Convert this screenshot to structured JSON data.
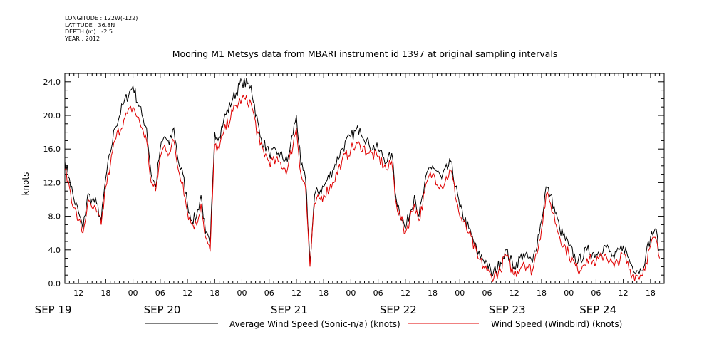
{
  "meta": {
    "longitude": "LONGITUDE : 122W(-122)",
    "latitude": "LATITUDE : 36.8N",
    "depth": "DEPTH (m) : -2.5",
    "year": "YEAR : 2012"
  },
  "chart_data": {
    "type": "line",
    "title": "Mooring M1 Metsys data from MBARI instrument id 1397 at original sampling intervals",
    "ylabel": "knots",
    "xlabel": "",
    "ylim": [
      0,
      25
    ],
    "xlim": [
      "2012-09-19 09:00",
      "2012-09-24 21:00"
    ],
    "yticks": [
      "0.0",
      "4.0",
      "8.0",
      "12.0",
      "16.0",
      "20.0",
      "24.0"
    ],
    "xtick_hours": [
      "12",
      "18",
      "00",
      "06",
      "12",
      "18",
      "00",
      "06",
      "12",
      "18",
      "00",
      "06",
      "12",
      "18",
      "00",
      "06",
      "12",
      "18",
      "00",
      "06",
      "12",
      "18",
      "00",
      "06",
      "12",
      "18"
    ],
    "date_labels": [
      "SEP 19",
      "SEP 20",
      "SEP 21",
      "SEP 22",
      "SEP 23",
      "SEP 24"
    ],
    "grid": false,
    "legend": "bottom",
    "series": [
      {
        "name": "Average Wind Speed (Sonic-n/a) (knots)",
        "color": "#000000",
        "x": [
          "2012-09-19 09:00",
          "2012-09-19 10:00",
          "2012-09-19 11:00",
          "2012-09-19 12:00",
          "2012-09-19 13:00",
          "2012-09-19 14:00",
          "2012-09-19 15:00",
          "2012-09-19 16:00",
          "2012-09-19 17:00",
          "2012-09-19 18:00",
          "2012-09-19 19:00",
          "2012-09-19 20:00",
          "2012-09-19 22:00",
          "2012-09-20 00:00",
          "2012-09-20 02:00",
          "2012-09-20 03:00",
          "2012-09-20 04:00",
          "2012-09-20 05:00",
          "2012-09-20 06:00",
          "2012-09-20 07:00",
          "2012-09-20 08:00",
          "2012-09-20 09:00",
          "2012-09-20 10:00",
          "2012-09-20 11:00",
          "2012-09-20 12:00",
          "2012-09-20 13:00",
          "2012-09-20 14:00",
          "2012-09-20 15:00",
          "2012-09-20 16:00",
          "2012-09-20 17:00",
          "2012-09-20 18:00",
          "2012-09-20 19:00",
          "2012-09-20 20:00",
          "2012-09-20 22:00",
          "2012-09-21 00:00",
          "2012-09-21 02:00",
          "2012-09-21 04:00",
          "2012-09-21 06:00",
          "2012-09-21 08:00",
          "2012-09-21 10:00",
          "2012-09-21 12:00",
          "2012-09-21 13:00",
          "2012-09-21 14:00",
          "2012-09-21 15:00",
          "2012-09-21 16:00",
          "2012-09-21 18:00",
          "2012-09-21 20:00",
          "2012-09-21 22:00",
          "2012-09-22 00:00",
          "2012-09-22 02:00",
          "2012-09-22 04:00",
          "2012-09-22 06:00",
          "2012-09-22 08:00",
          "2012-09-22 09:00",
          "2012-09-22 10:00",
          "2012-09-22 12:00",
          "2012-09-22 14:00",
          "2012-09-22 15:00",
          "2012-09-22 17:00",
          "2012-09-22 18:00",
          "2012-09-22 20:00",
          "2012-09-22 22:00",
          "2012-09-23 00:00",
          "2012-09-23 02:00",
          "2012-09-23 04:00",
          "2012-09-23 06:00",
          "2012-09-23 07:00",
          "2012-09-23 09:00",
          "2012-09-23 10:00",
          "2012-09-23 12:00",
          "2012-09-23 14:00",
          "2012-09-23 16:00",
          "2012-09-23 18:00",
          "2012-09-23 19:00",
          "2012-09-23 20:00",
          "2012-09-23 22:00",
          "2012-09-24 00:00",
          "2012-09-24 02:00",
          "2012-09-24 04:00",
          "2012-09-24 06:00",
          "2012-09-24 08:00",
          "2012-09-24 10:00",
          "2012-09-24 12:00",
          "2012-09-24 14:00",
          "2012-09-24 16:00",
          "2012-09-24 17:00",
          "2012-09-24 18:00",
          "2012-09-24 19:00",
          "2012-09-24 20:00"
        ],
        "values": [
          14.5,
          12.5,
          10.0,
          8.5,
          6.5,
          10.5,
          10.0,
          9.5,
          7.5,
          12.5,
          15.5,
          18.5,
          21.5,
          23.5,
          20.0,
          18.5,
          13.0,
          11.5,
          16.0,
          17.5,
          16.5,
          18.5,
          14.5,
          13.0,
          9.5,
          7.5,
          8.0,
          10.5,
          6.0,
          4.5,
          18.0,
          17.5,
          19.5,
          22.0,
          24.0,
          23.5,
          17.5,
          15.5,
          15.5,
          14.5,
          20.0,
          14.0,
          12.5,
          2.5,
          10.5,
          11.5,
          13.5,
          16.0,
          17.5,
          18.5,
          16.5,
          16.0,
          14.5,
          15.5,
          10.0,
          6.5,
          10.5,
          8.0,
          13.5,
          14.0,
          12.5,
          14.5,
          9.0,
          6.5,
          3.5,
          2.5,
          1.0,
          2.5,
          4.0,
          2.0,
          3.5,
          2.5,
          7.5,
          11.5,
          10.5,
          6.5,
          4.5,
          2.5,
          4.0,
          3.5,
          4.5,
          3.0,
          4.5,
          2.0,
          1.5,
          3.5,
          5.5,
          6.5,
          4.0
        ]
      },
      {
        "name": "Wind Speed (Windbird) (knots)",
        "color": "#e00000",
        "x": [
          "2012-09-19 09:00",
          "2012-09-19 10:00",
          "2012-09-19 11:00",
          "2012-09-19 12:00",
          "2012-09-19 13:00",
          "2012-09-19 14:00",
          "2012-09-19 15:00",
          "2012-09-19 16:00",
          "2012-09-19 17:00",
          "2012-09-19 18:00",
          "2012-09-19 19:00",
          "2012-09-19 20:00",
          "2012-09-19 22:00",
          "2012-09-20 00:00",
          "2012-09-20 02:00",
          "2012-09-20 03:00",
          "2012-09-20 04:00",
          "2012-09-20 05:00",
          "2012-09-20 06:00",
          "2012-09-20 07:00",
          "2012-09-20 08:00",
          "2012-09-20 09:00",
          "2012-09-20 10:00",
          "2012-09-20 11:00",
          "2012-09-20 12:00",
          "2012-09-20 13:00",
          "2012-09-20 14:00",
          "2012-09-20 15:00",
          "2012-09-20 16:00",
          "2012-09-20 17:00",
          "2012-09-20 18:00",
          "2012-09-20 19:00",
          "2012-09-20 20:00",
          "2012-09-20 22:00",
          "2012-09-21 00:00",
          "2012-09-21 02:00",
          "2012-09-21 04:00",
          "2012-09-21 06:00",
          "2012-09-21 08:00",
          "2012-09-21 10:00",
          "2012-09-21 12:00",
          "2012-09-21 13:00",
          "2012-09-21 14:00",
          "2012-09-21 15:00",
          "2012-09-21 16:00",
          "2012-09-21 18:00",
          "2012-09-21 20:00",
          "2012-09-21 22:00",
          "2012-09-22 00:00",
          "2012-09-22 02:00",
          "2012-09-22 04:00",
          "2012-09-22 06:00",
          "2012-09-22 08:00",
          "2012-09-22 09:00",
          "2012-09-22 10:00",
          "2012-09-22 12:00",
          "2012-09-22 14:00",
          "2012-09-22 15:00",
          "2012-09-22 17:00",
          "2012-09-22 18:00",
          "2012-09-22 20:00",
          "2012-09-22 22:00",
          "2012-09-23 00:00",
          "2012-09-23 02:00",
          "2012-09-23 04:00",
          "2012-09-23 06:00",
          "2012-09-23 07:00",
          "2012-09-23 09:00",
          "2012-09-23 10:00",
          "2012-09-23 12:00",
          "2012-09-23 14:00",
          "2012-09-23 16:00",
          "2012-09-23 18:00",
          "2012-09-23 19:00",
          "2012-09-23 20:00",
          "2012-09-23 22:00",
          "2012-09-24 00:00",
          "2012-09-24 02:00",
          "2012-09-24 04:00",
          "2012-09-24 06:00",
          "2012-09-24 08:00",
          "2012-09-24 10:00",
          "2012-09-24 12:00",
          "2012-09-24 14:00",
          "2012-09-24 16:00",
          "2012-09-24 17:00",
          "2012-09-24 18:00",
          "2012-09-24 19:00",
          "2012-09-24 20:00"
        ],
        "values": [
          13.5,
          11.5,
          9.0,
          7.5,
          6.0,
          9.5,
          9.0,
          8.5,
          7.0,
          11.5,
          14.0,
          17.0,
          19.5,
          21.0,
          18.5,
          17.0,
          12.0,
          11.0,
          15.0,
          16.5,
          15.5,
          17.0,
          13.5,
          12.0,
          8.5,
          7.0,
          7.0,
          9.5,
          5.5,
          3.8,
          16.5,
          16.0,
          18.0,
          20.5,
          22.0,
          21.5,
          16.5,
          14.5,
          14.5,
          13.5,
          18.5,
          13.0,
          11.5,
          2.0,
          9.5,
          10.5,
          12.0,
          14.5,
          16.0,
          16.5,
          15.5,
          15.0,
          13.5,
          14.5,
          9.5,
          6.0,
          9.5,
          7.5,
          12.5,
          13.0,
          11.5,
          13.5,
          8.0,
          6.0,
          3.0,
          1.5,
          0.8,
          1.5,
          3.5,
          1.0,
          2.5,
          1.5,
          6.5,
          10.5,
          9.5,
          5.5,
          3.5,
          1.5,
          3.0,
          2.5,
          3.5,
          2.0,
          3.5,
          1.0,
          1.0,
          2.5,
          4.5,
          5.5,
          3.0
        ]
      }
    ]
  }
}
